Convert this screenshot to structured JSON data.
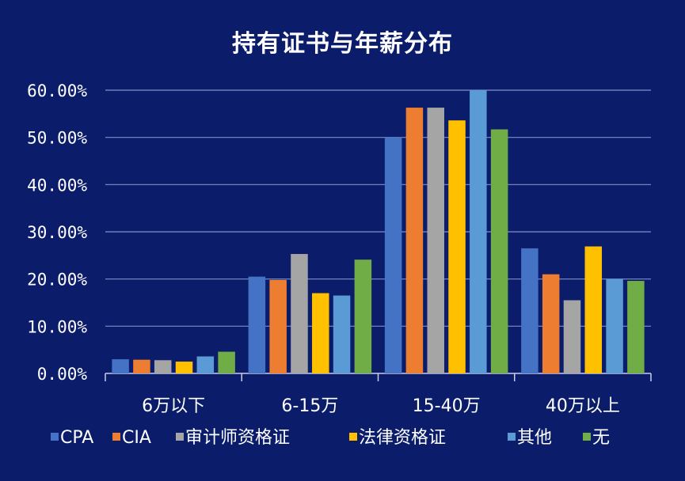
{
  "chart_data": {
    "type": "bar",
    "title": "持有证书与年薪分布",
    "categories": [
      "6万以下",
      "6-15万",
      "15-40万",
      "40万以上"
    ],
    "y_ticks": [
      "0.00%",
      "10.00%",
      "20.00%",
      "30.00%",
      "40.00%",
      "50.00%",
      "60.00%"
    ],
    "ylim": [
      0,
      60
    ],
    "grid": true,
    "legend_position": "bottom",
    "series": [
      {
        "name": "CPA",
        "color": "#4472c4",
        "values": [
          3.0,
          20.5,
          50.0,
          26.5
        ]
      },
      {
        "name": "CIA",
        "color": "#ed7d31",
        "values": [
          2.9,
          19.8,
          56.3,
          21.0
        ]
      },
      {
        "name": "审计师资格证",
        "color": "#a5a5a5",
        "values": [
          2.8,
          25.3,
          56.3,
          15.5
        ]
      },
      {
        "name": "法律资格证",
        "color": "#ffc000",
        "values": [
          2.5,
          17.0,
          53.6,
          26.9
        ]
      },
      {
        "name": "其他",
        "color": "#5b9bd5",
        "values": [
          3.6,
          16.5,
          60.0,
          20.0
        ]
      },
      {
        "name": "无",
        "color": "#70ad47",
        "values": [
          4.6,
          24.1,
          51.7,
          19.6
        ]
      }
    ]
  }
}
